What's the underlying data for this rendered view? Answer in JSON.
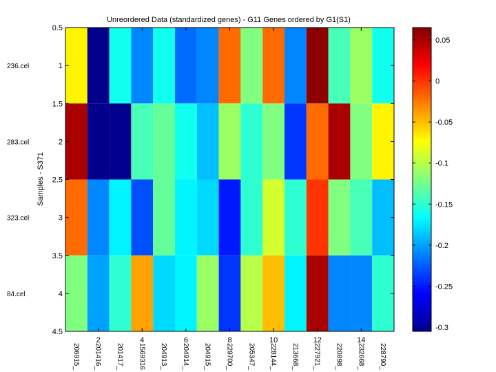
{
  "chart_data": {
    "type": "heatmap",
    "title": "Unreordered Data (standardized genes) - G11 Genes ordered by G1(S1)",
    "ylabel": "Samples - S371",
    "xlabel": "",
    "row_labels": [
      "236.cel",
      "283.cel",
      "323.cel",
      "84.cel"
    ],
    "col_labels": [
      "206915_",
      "201416_",
      "201417_",
      "1569316",
      "204913_",
      "204914_",
      "204915_",
      "229700_",
      "205347_",
      "228144_",
      "213668_",
      "227921_",
      "220898_",
      "232668_",
      "228790_"
    ],
    "x_ticks": [
      2,
      4,
      6,
      8,
      10,
      12,
      14
    ],
    "y_ticks": [
      0.5,
      1,
      1.5,
      2,
      2.5,
      3,
      3.5,
      4,
      4.5
    ],
    "xlim": [
      0.5,
      15.5
    ],
    "ylim": [
      0.5,
      4.5
    ],
    "values": [
      [
        -0.07,
        -0.3,
        -0.16,
        -0.21,
        -0.16,
        -0.22,
        -0.21,
        -0.02,
        -0.12,
        -0.02,
        -0.21,
        0.06,
        -0.14,
        -0.11,
        -0.16
      ],
      [
        0.05,
        -0.3,
        -0.3,
        -0.14,
        -0.13,
        -0.16,
        -0.19,
        -0.11,
        -0.15,
        -0.12,
        -0.24,
        -0.02,
        0.05,
        -0.12,
        -0.07
      ],
      [
        -0.02,
        -0.21,
        -0.17,
        -0.23,
        -0.13,
        -0.17,
        -0.18,
        -0.25,
        -0.15,
        -0.09,
        -0.15,
        0.0,
        -0.12,
        -0.14,
        -0.19
      ],
      [
        -0.12,
        -0.2,
        -0.15,
        -0.04,
        -0.18,
        -0.17,
        -0.11,
        -0.24,
        -0.1,
        -0.05,
        -0.17,
        0.05,
        -0.21,
        -0.21,
        -0.15
      ]
    ],
    "colorbar": {
      "min": -0.305,
      "max": 0.065,
      "ticks": [
        0.05,
        0,
        -0.05,
        -0.1,
        -0.15,
        -0.2,
        -0.25,
        -0.3
      ],
      "colormap": "jet"
    }
  }
}
